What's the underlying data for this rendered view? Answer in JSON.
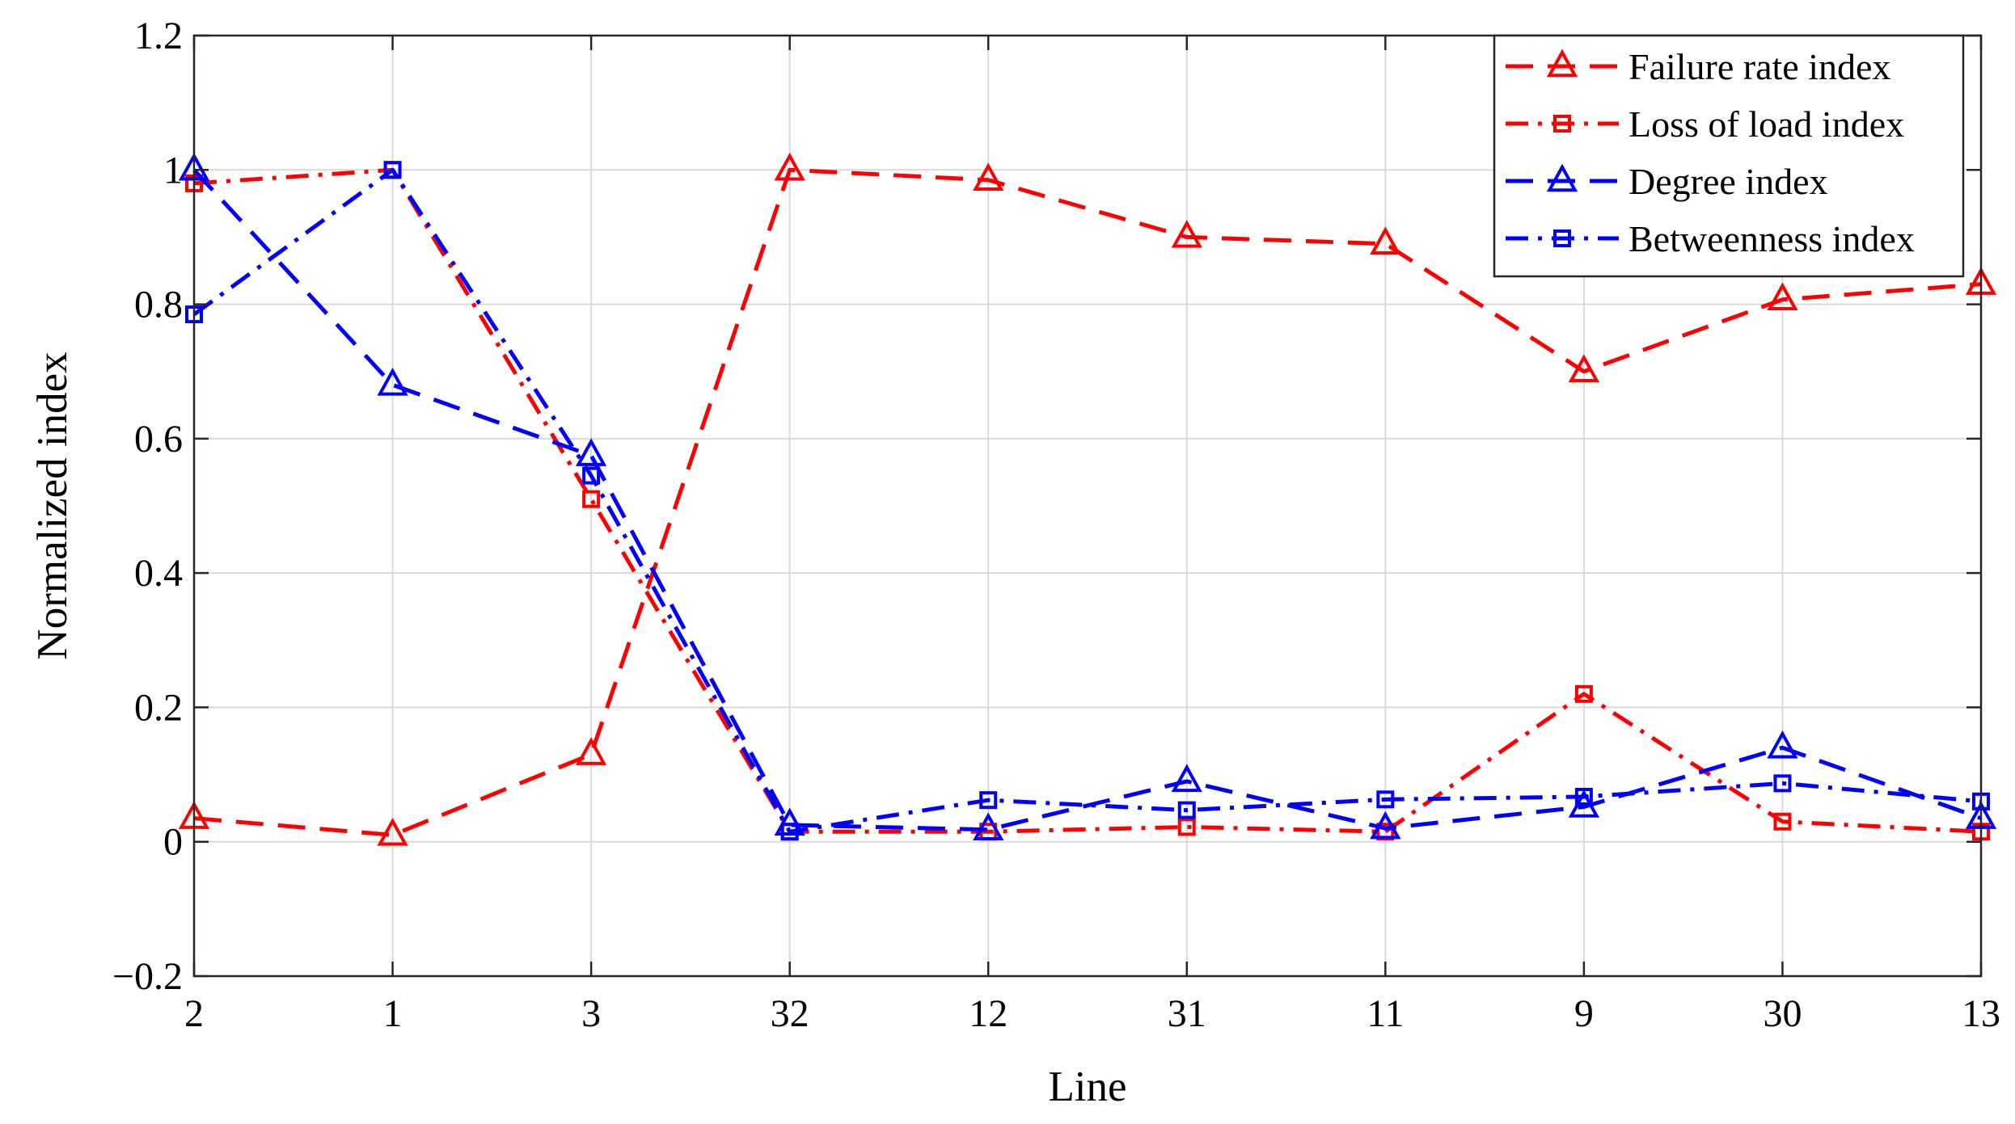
{
  "chart_data": {
    "type": "line",
    "categories": [
      "2",
      "1",
      "3",
      "32",
      "12",
      "31",
      "11",
      "9",
      "30",
      "13"
    ],
    "xlabel": "Line",
    "ylabel": "Normalized index",
    "ylim": [
      -0.2,
      1.2
    ],
    "yticks": [
      -0.2,
      0,
      0.2,
      0.4,
      0.6,
      0.8,
      1,
      1.2
    ],
    "ytick_labels": [
      "−0.2",
      "0",
      "0.2",
      "0.4",
      "0.6",
      "0.8",
      "1",
      "1.2"
    ],
    "grid": true,
    "legend_position": "top-right",
    "series": [
      {
        "name": "Failure rate index",
        "color": "#ff0000",
        "line_style": "dashed",
        "marker": "triangle",
        "values": [
          0.035,
          0.01,
          0.13,
          1.0,
          0.985,
          0.9,
          0.89,
          0.7,
          0.807,
          0.83
        ]
      },
      {
        "name": "Loss of load index",
        "color": "#ff0000",
        "line_style": "dash-dot",
        "marker": "square",
        "values": [
          0.98,
          1.0,
          0.51,
          0.015,
          0.015,
          0.022,
          0.015,
          0.22,
          0.03,
          0.015
        ]
      },
      {
        "name": "Degree index",
        "color": "#0000ff",
        "line_style": "dashed",
        "marker": "triangle",
        "values": [
          1.0,
          0.68,
          0.575,
          0.025,
          0.018,
          0.09,
          0.02,
          0.052,
          0.14,
          0.035
        ]
      },
      {
        "name": "Betweenness index",
        "color": "#0000ff",
        "line_style": "dash-dot",
        "marker": "square",
        "values": [
          0.785,
          1.0,
          0.545,
          0.015,
          0.062,
          0.047,
          0.063,
          0.067,
          0.087,
          0.06
        ]
      }
    ]
  }
}
